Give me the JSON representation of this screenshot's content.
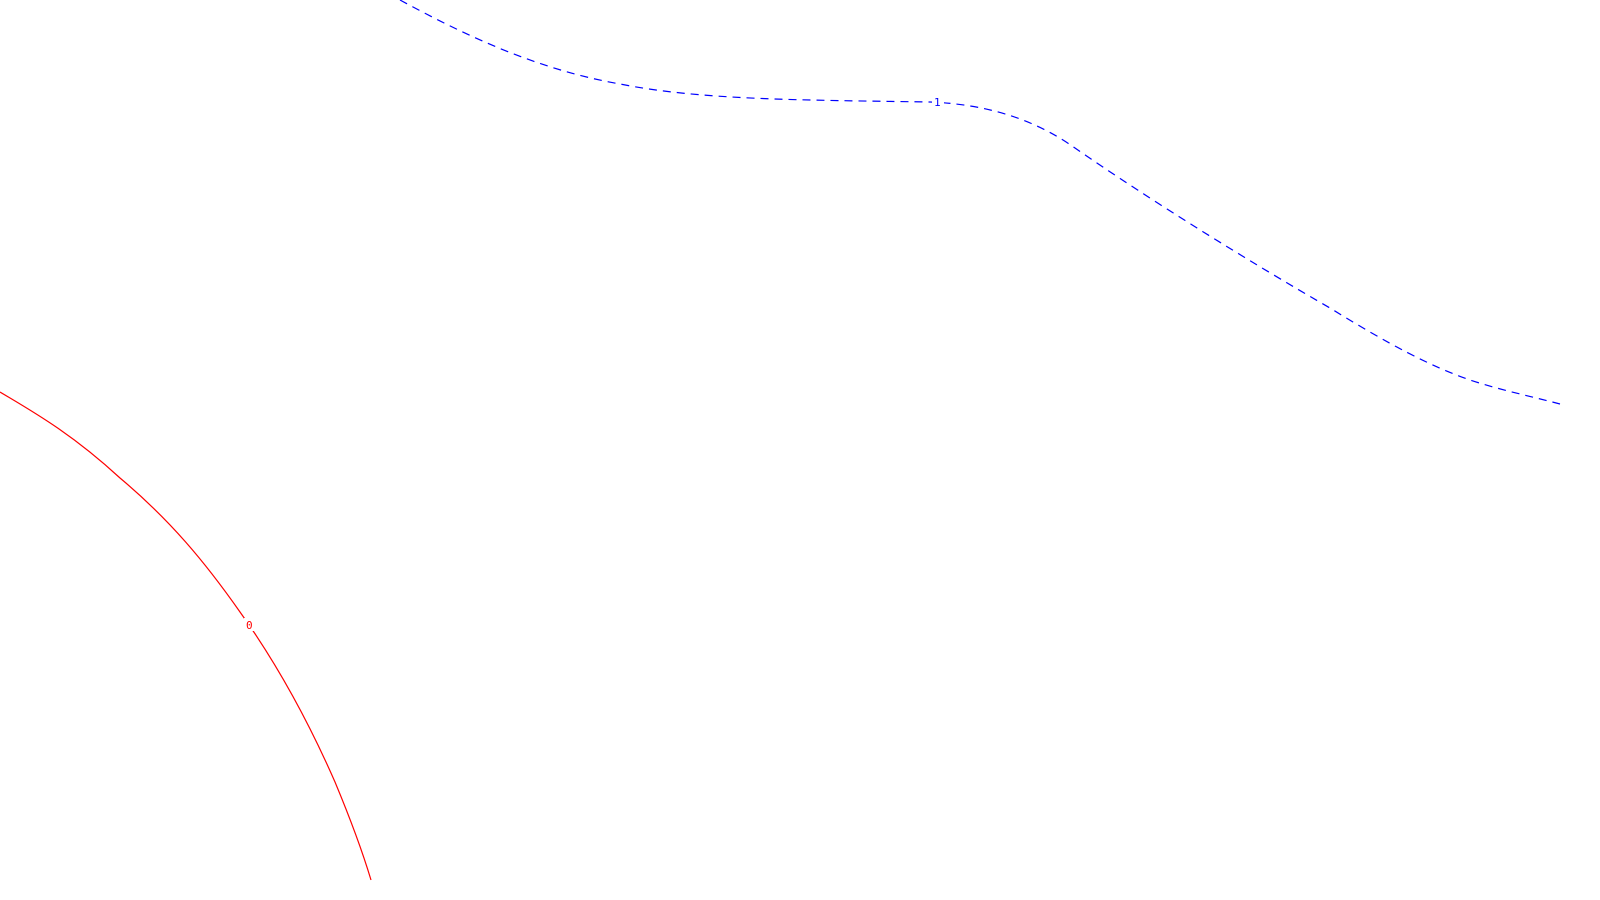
{
  "curves": [
    {
      "id": "curve-0",
      "label": "0",
      "color": "#ff0000",
      "style": "solid"
    },
    {
      "id": "curve-1",
      "label": "1",
      "color": "#0000ff",
      "style": "dashed"
    }
  ]
}
